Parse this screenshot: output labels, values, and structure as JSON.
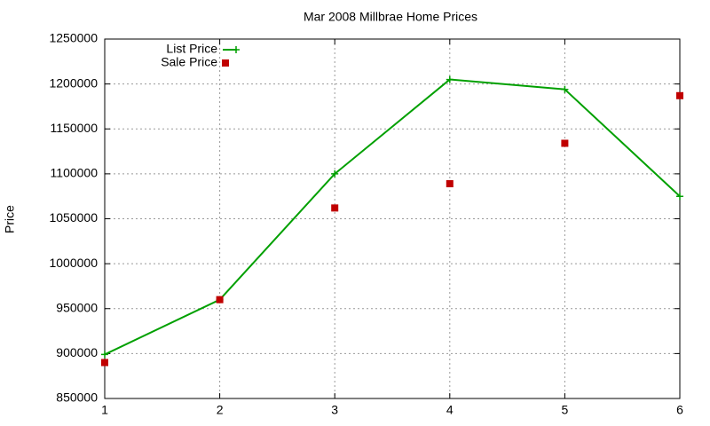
{
  "chart_data": {
    "type": "line",
    "title": "Mar 2008 Millbrae Home Prices",
    "y_label": "Price",
    "x": [
      1,
      2,
      3,
      4,
      5,
      6
    ],
    "series": [
      {
        "name": "List Price",
        "color": "#00a000",
        "line": true,
        "marker": "plus",
        "values": [
          899000,
          960000,
          1100000,
          1205000,
          1194000,
          1075000
        ]
      },
      {
        "name": "Sale Price",
        "color": "#c00000",
        "line": false,
        "marker": "square",
        "values": [
          890000,
          960000,
          1062000,
          1089000,
          1134000,
          1187000
        ]
      }
    ],
    "xlim": [
      1,
      6
    ],
    "xticks": [
      1,
      2,
      3,
      4,
      5,
      6
    ],
    "ylim": [
      850000,
      1250000
    ],
    "yticks": [
      850000,
      900000,
      950000,
      1000000,
      1050000,
      1100000,
      1150000,
      1200000,
      1250000
    ],
    "grid": true,
    "legend": "top-left"
  }
}
